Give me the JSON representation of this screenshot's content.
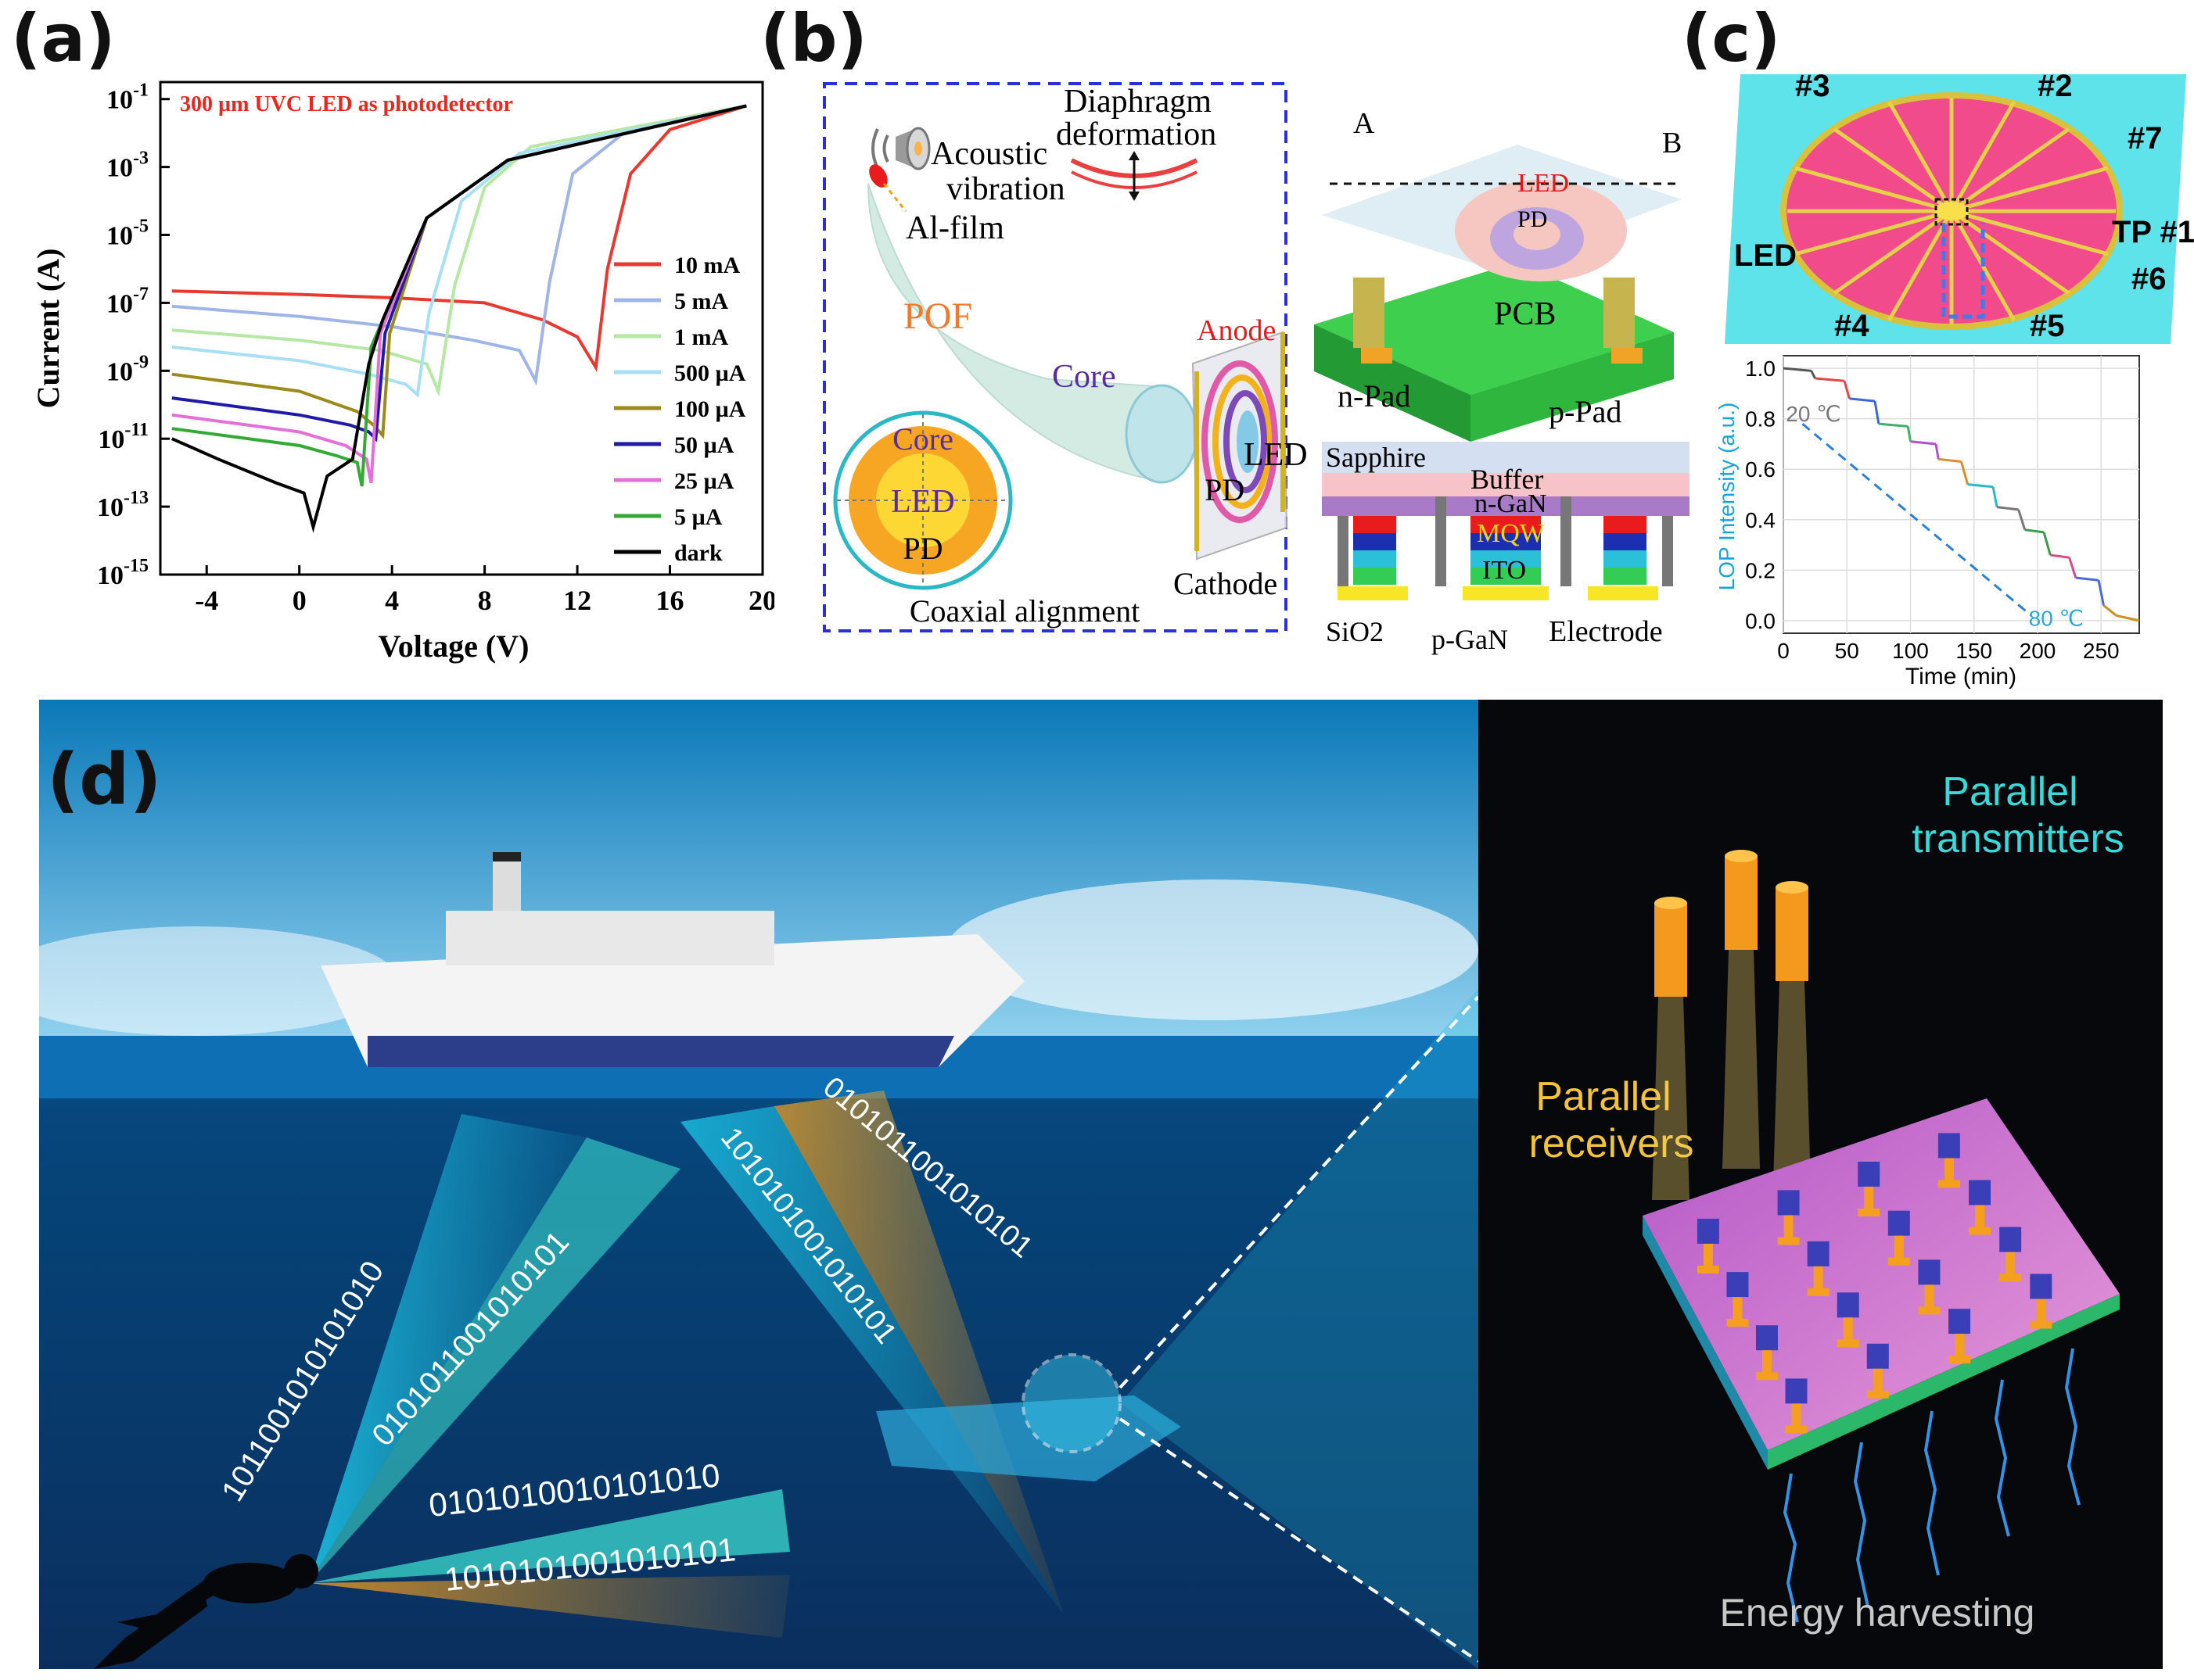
{
  "figure": {
    "panel_labels": [
      "(a)",
      "(b)",
      "(c)",
      "(d)"
    ]
  },
  "panel_a": {
    "chart_data": {
      "type": "line",
      "title": "300 µm UVC LED as photodetector",
      "xlabel": "Voltage (V)",
      "ylabel": "Current (A)",
      "xlim": [
        -6,
        20
      ],
      "ylim_log10": [
        -15,
        -0.5
      ],
      "x_ticks": [
        "-4",
        "0",
        "4",
        "8",
        "12",
        "16",
        "20"
      ],
      "y_ticks": [
        "10-1",
        "10-3",
        "10-5",
        "10-7",
        "10-9",
        "10-11",
        "10-13",
        "10-15"
      ],
      "series": [
        {
          "name": "10 mA",
          "color": "#e8382f",
          "points": [
            [
              -5.5,
              -6.65
            ],
            [
              0,
              -6.75
            ],
            [
              4,
              -6.85
            ],
            [
              8,
              -7.0
            ],
            [
              10.5,
              -7.5
            ],
            [
              12,
              -8.0
            ],
            [
              12.8,
              -8.9
            ],
            [
              13.3,
              -6.0
            ],
            [
              14.3,
              -3.2
            ],
            [
              16,
              -1.9
            ],
            [
              19.3,
              -1.2
            ]
          ]
        },
        {
          "name": "5 mA",
          "color": "#9fb4e8",
          "points": [
            [
              -5.5,
              -7.1
            ],
            [
              0,
              -7.4
            ],
            [
              4,
              -7.7
            ],
            [
              7.5,
              -8.1
            ],
            [
              9.5,
              -8.4
            ],
            [
              10.2,
              -9.3
            ],
            [
              10.8,
              -6.4
            ],
            [
              11.8,
              -3.2
            ],
            [
              14,
              -2.0
            ],
            [
              19.3,
              -1.2
            ]
          ]
        },
        {
          "name": "1 mA",
          "color": "#b5e8a2",
          "points": [
            [
              -5.5,
              -7.8
            ],
            [
              0,
              -8.1
            ],
            [
              3.5,
              -8.4
            ],
            [
              5.5,
              -8.8
            ],
            [
              6,
              -9.6
            ],
            [
              6.7,
              -6.5
            ],
            [
              8,
              -3.6
            ],
            [
              10,
              -2.4
            ],
            [
              19.3,
              -1.2
            ]
          ]
        },
        {
          "name": "500 µA",
          "color": "#a7dff4",
          "points": [
            [
              -5.5,
              -8.3
            ],
            [
              0,
              -8.7
            ],
            [
              3,
              -9.1
            ],
            [
              4.6,
              -9.4
            ],
            [
              5.1,
              -9.7
            ],
            [
              5.6,
              -7.3
            ],
            [
              7,
              -4.0
            ],
            [
              9.5,
              -2.6
            ],
            [
              19.3,
              -1.2
            ]
          ]
        },
        {
          "name": "100 µA",
          "color": "#9b8b1d",
          "points": [
            [
              -5.5,
              -9.1
            ],
            [
              0,
              -9.6
            ],
            [
              2.5,
              -10.2
            ],
            [
              3.2,
              -10.6
            ],
            [
              3.6,
              -10.9
            ],
            [
              3.9,
              -7.9
            ],
            [
              5.5,
              -4.5
            ],
            [
              9,
              -2.8
            ],
            [
              19.3,
              -1.2
            ]
          ]
        },
        {
          "name": "50 µA",
          "color": "#1f1aa8",
          "points": [
            [
              -5.5,
              -9.8
            ],
            [
              0,
              -10.3
            ],
            [
              2.2,
              -10.6
            ],
            [
              3.0,
              -10.8
            ],
            [
              3.3,
              -11.0
            ],
            [
              3.7,
              -7.9
            ],
            [
              5.5,
              -4.5
            ],
            [
              9,
              -2.8
            ],
            [
              19.3,
              -1.2
            ]
          ]
        },
        {
          "name": "25 µA",
          "color": "#e46fd6",
          "points": [
            [
              -5.5,
              -10.3
            ],
            [
              0,
              -10.8
            ],
            [
              2,
              -11.2
            ],
            [
              2.9,
              -11.6
            ],
            [
              3.1,
              -12.3
            ],
            [
              3.5,
              -7.9
            ],
            [
              5.5,
              -4.5
            ],
            [
              9,
              -2.8
            ],
            [
              19.3,
              -1.2
            ]
          ]
        },
        {
          "name": "5 µA",
          "color": "#36a836",
          "points": [
            [
              -5.5,
              -10.7
            ],
            [
              0,
              -11.2
            ],
            [
              1.6,
              -11.5
            ],
            [
              2.5,
              -11.7
            ],
            [
              2.7,
              -12.4
            ],
            [
              3.1,
              -8.3
            ],
            [
              5.5,
              -4.5
            ],
            [
              9,
              -2.8
            ],
            [
              19.3,
              -1.2
            ]
          ]
        },
        {
          "name": "dark",
          "color": "#000000",
          "points": [
            [
              -5.5,
              -11.0
            ],
            [
              -3.5,
              -11.6
            ],
            [
              -1,
              -12.3
            ],
            [
              0.2,
              -12.6
            ],
            [
              0.6,
              -13.6
            ],
            [
              1.2,
              -12.1
            ],
            [
              2.3,
              -11.6
            ],
            [
              3.0,
              -8.8
            ],
            [
              3.6,
              -7.5
            ],
            [
              5.5,
              -4.5
            ],
            [
              9,
              -2.8
            ],
            [
              19.3,
              -1.2
            ]
          ]
        }
      ]
    }
  },
  "panel_b": {
    "labels": {
      "acoustic": "Acoustic",
      "vibration": "vibration",
      "diaphragm": "Diaphragm",
      "deformation": "deformation",
      "al_film": "Al-film",
      "pof": "POF",
      "anode": "Anode",
      "core": "Core",
      "led": "LED",
      "pd": "PD",
      "cathode": "Cathode",
      "coaxial": "Coaxial alignment",
      "a": "A",
      "b": "B",
      "pcb": "PCB",
      "n_pad": "n-Pad",
      "p_pad": "p-Pad",
      "sapphire": "Sapphire",
      "buffer": "Buffer",
      "ngan": "n-GaN",
      "mqw": "MQW",
      "ito": "ITO",
      "sio2": "SiO2",
      "pgan": "p-GaN",
      "electrode": "Electrode"
    }
  },
  "panel_c": {
    "labels": {
      "p3": "#3",
      "p2": "#2",
      "p7": "#7",
      "tp1": "TP #1",
      "led": "LED",
      "p6": "#6",
      "p4": "#4",
      "p5": "#5"
    },
    "chart_data": {
      "type": "line",
      "xlabel": "Time (min)",
      "ylabel": "LOP Intensity (a.u.)",
      "xlim": [
        0,
        280
      ],
      "ylim": [
        -0.05,
        1.05
      ],
      "x_ticks": [
        "0",
        "50",
        "100",
        "150",
        "200",
        "250"
      ],
      "y_ticks": [
        "0.0",
        "0.2",
        "0.4",
        "0.6",
        "0.8",
        "1.0"
      ],
      "annotations": [
        "20 ℃",
        "80 ℃"
      ],
      "series": [
        {
          "name": "step",
          "points": [
            [
              0,
              1.0
            ],
            [
              22,
              0.99
            ],
            [
              25,
              0.96
            ],
            [
              48,
              0.95
            ],
            [
              52,
              0.88
            ],
            [
              72,
              0.87
            ],
            [
              75,
              0.78
            ],
            [
              98,
              0.77
            ],
            [
              100,
              0.71
            ],
            [
              120,
              0.7
            ],
            [
              122,
              0.64
            ],
            [
              140,
              0.63
            ],
            [
              145,
              0.54
            ],
            [
              165,
              0.53
            ],
            [
              168,
              0.45
            ],
            [
              185,
              0.44
            ],
            [
              190,
              0.36
            ],
            [
              205,
              0.35
            ],
            [
              210,
              0.26
            ],
            [
              225,
              0.25
            ],
            [
              230,
              0.17
            ],
            [
              248,
              0.16
            ],
            [
              252,
              0.06
            ],
            [
              262,
              0.02
            ],
            [
              280,
              0.0
            ]
          ]
        }
      ]
    }
  },
  "panel_d": {
    "binary": {
      "b1": "1011001010101010",
      "b2": "0101011001010101",
      "b3": "0101010010101010",
      "b4": "1010101001010101",
      "b5": "1010101001010101",
      "b6": "0101011001010101"
    },
    "parallel_transmitters_1": "Parallel",
    "parallel_transmitters_2": "transmitters",
    "parallel_receivers_1": "Parallel",
    "parallel_receivers_2": "receivers",
    "energy_harvesting": "Energy harvesting"
  }
}
